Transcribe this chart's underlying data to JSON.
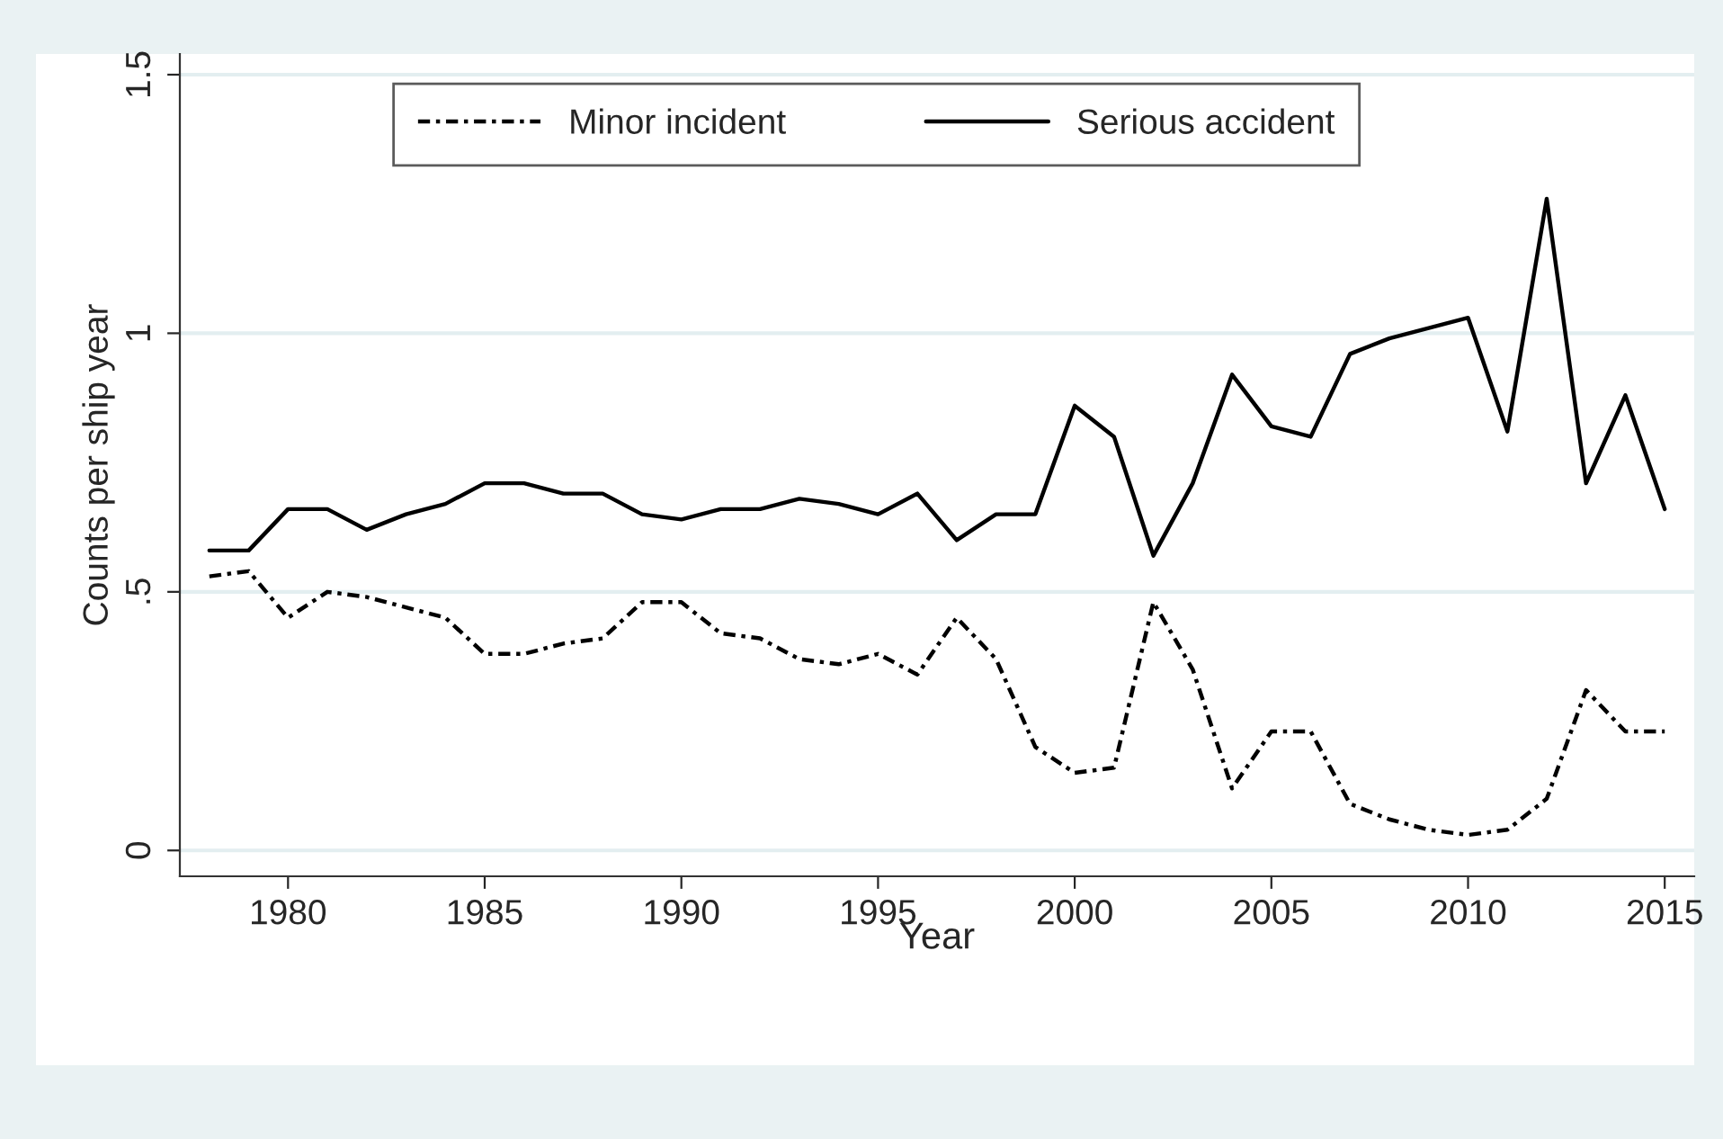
{
  "chart_data": {
    "type": "line",
    "xlabel": "Year",
    "ylabel": "Counts per ship year",
    "x": [
      1978,
      1979,
      1980,
      1981,
      1982,
      1983,
      1984,
      1985,
      1986,
      1987,
      1988,
      1989,
      1990,
      1991,
      1992,
      1993,
      1994,
      1995,
      1996,
      1997,
      1998,
      1999,
      2000,
      2001,
      2002,
      2003,
      2004,
      2005,
      2006,
      2007,
      2008,
      2009,
      2010,
      2011,
      2012,
      2013,
      2014,
      2015
    ],
    "series": [
      {
        "name": "Minor incident",
        "color": "#000000",
        "line_style": "dashdot",
        "values": [
          0.53,
          0.54,
          0.45,
          0.5,
          0.49,
          0.47,
          0.45,
          0.38,
          0.38,
          0.4,
          0.41,
          0.48,
          0.48,
          0.42,
          0.41,
          0.37,
          0.36,
          0.38,
          0.34,
          0.45,
          0.37,
          0.2,
          0.15,
          0.16,
          0.48,
          0.35,
          0.12,
          0.23,
          0.23,
          0.09,
          0.06,
          0.04,
          0.03,
          0.04,
          0.1,
          0.31,
          0.23,
          0.23
        ]
      },
      {
        "name": "Serious accident",
        "color": "#000000",
        "line_style": "solid",
        "values": [
          0.58,
          0.58,
          0.66,
          0.66,
          0.62,
          0.65,
          0.67,
          0.71,
          0.71,
          0.69,
          0.69,
          0.65,
          0.64,
          0.66,
          0.66,
          0.68,
          0.67,
          0.65,
          0.69,
          0.6,
          0.65,
          0.65,
          0.86,
          0.8,
          0.57,
          0.71,
          0.92,
          0.82,
          0.8,
          0.96,
          0.99,
          1.01,
          1.03,
          0.81,
          1.26,
          0.71,
          0.88,
          0.66
        ]
      }
    ],
    "xlim": [
      1977.25,
      2015.75
    ],
    "ylim": [
      -0.05,
      1.54
    ],
    "xticks": [
      1980,
      1985,
      1990,
      1995,
      2000,
      2005,
      2010,
      2015
    ],
    "yticks": [
      {
        "value": 0,
        "label": "0"
      },
      {
        "value": 0.5,
        "label": ".5"
      },
      {
        "value": 1,
        "label": "1"
      },
      {
        "value": 1.5,
        "label": "1.5"
      }
    ],
    "grid": "y",
    "legend": "top"
  }
}
